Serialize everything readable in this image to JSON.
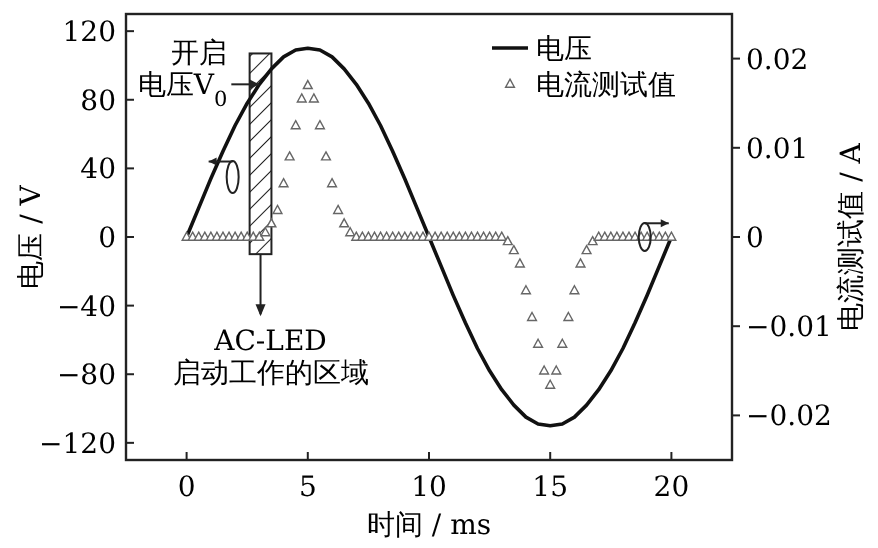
{
  "chart_data": {
    "type": "line",
    "xlabel": "时间 / ms",
    "ylabel": "电压 / V",
    "y2label": "电流测试值 / A",
    "xlim": [
      -2.5,
      22.5
    ],
    "ylim": [
      -130,
      130
    ],
    "y2lim": [
      -0.025,
      0.025
    ],
    "xticks": [
      0,
      5,
      10,
      15,
      20
    ],
    "yticks": [
      -120,
      -80,
      -40,
      0,
      40,
      80,
      120
    ],
    "y2ticks": [
      -0.02,
      -0.01,
      0,
      0.01,
      0.02
    ],
    "legend": "top right",
    "grid": false,
    "series": [
      {
        "name": "电压",
        "type": "line",
        "color": "#111111",
        "marker": "none",
        "x": [
          0,
          0.5,
          1,
          1.5,
          2,
          2.5,
          3,
          3.5,
          4,
          4.5,
          5,
          5.5,
          6,
          6.5,
          7,
          7.5,
          8,
          8.5,
          9,
          9.5,
          10,
          10.5,
          11,
          11.5,
          12,
          12.5,
          13,
          13.5,
          14,
          14.5,
          15,
          15.5,
          16,
          16.5,
          17,
          17.5,
          18,
          18.5,
          19,
          19.5,
          20
        ],
        "values": [
          0,
          17,
          34,
          50,
          65,
          78,
          89,
          98,
          105,
          109,
          110,
          109,
          105,
          98,
          89,
          78,
          65,
          50,
          34,
          17,
          0,
          -17,
          -34,
          -50,
          -65,
          -78,
          -89,
          -98,
          -105,
          -109,
          -110,
          -109,
          -105,
          -98,
          -89,
          -78,
          -65,
          -50,
          -34,
          -17,
          0
        ]
      },
      {
        "name": "电流测试值",
        "type": "scatter",
        "axis": "y2",
        "color": "#666666",
        "marker": "triangle",
        "x": [
          0,
          0.25,
          0.5,
          0.75,
          1,
          1.25,
          1.5,
          1.75,
          2,
          2.25,
          2.5,
          2.75,
          3,
          3.25,
          3.5,
          3.75,
          4,
          4.25,
          4.5,
          4.75,
          5,
          5.25,
          5.5,
          5.75,
          6,
          6.25,
          6.5,
          6.75,
          7,
          7.25,
          7.5,
          7.75,
          8,
          8.25,
          8.5,
          8.75,
          9,
          9.25,
          9.5,
          9.75,
          10,
          10.25,
          10.5,
          10.75,
          11,
          11.25,
          11.5,
          11.75,
          12,
          12.25,
          12.5,
          12.75,
          13,
          13.25,
          13.5,
          13.75,
          14,
          14.25,
          14.5,
          14.75,
          15,
          15.25,
          15.5,
          15.75,
          16,
          16.25,
          16.5,
          16.75,
          17,
          17.25,
          17.5,
          17.75,
          18,
          18.25,
          18.5,
          18.75,
          19,
          19.25,
          19.5,
          19.75,
          20
        ],
        "values": [
          0,
          0,
          0,
          0,
          0,
          0,
          0,
          0,
          0,
          0,
          0,
          0,
          0,
          0.0005,
          0.0015,
          0.003,
          0.006,
          0.009,
          0.0125,
          0.0155,
          0.017,
          0.0155,
          0.0125,
          0.009,
          0.006,
          0.003,
          0.0015,
          0.0005,
          0,
          0,
          0,
          0,
          0,
          0,
          0,
          0,
          0,
          0,
          0,
          0,
          0,
          0,
          0,
          0,
          0,
          0,
          0,
          0,
          0,
          0,
          0,
          0,
          0,
          -0.0005,
          -0.0015,
          -0.003,
          -0.006,
          -0.009,
          -0.012,
          -0.015,
          -0.0166,
          -0.015,
          -0.012,
          -0.009,
          -0.006,
          -0.003,
          -0.0015,
          -0.0005,
          0,
          0,
          0,
          0,
          0,
          0,
          0,
          0,
          0,
          0,
          0,
          0,
          0
        ]
      }
    ],
    "bands": [
      {
        "axis": "x",
        "from": 2.6,
        "to": 3.5,
        "label": "AC-LED\n启动工作的区域"
      }
    ],
    "annotations": [
      {
        "text": "开启电压V$_{0}$",
        "x": 3,
        "y": 89
      }
    ]
  }
}
